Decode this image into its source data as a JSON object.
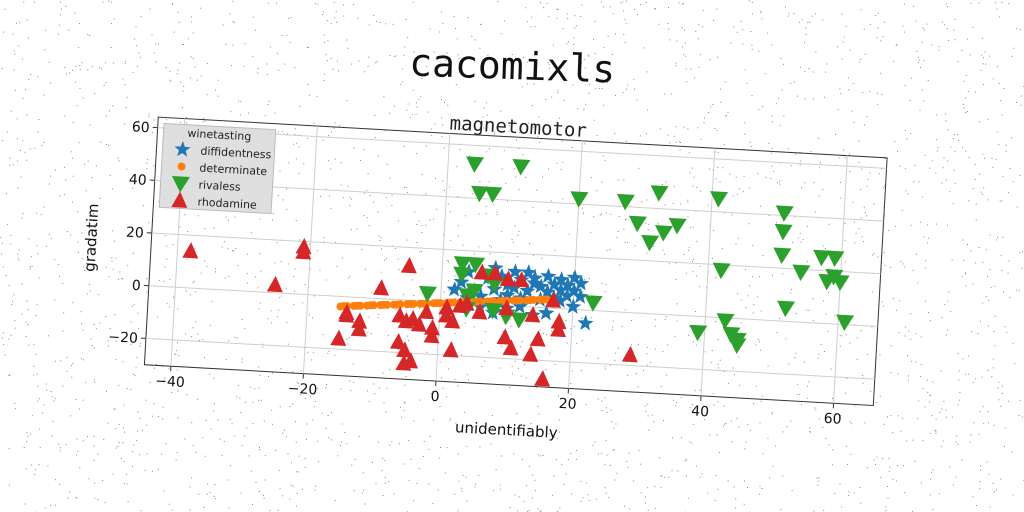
{
  "suptitle": "cacomixls",
  "colors": {
    "diffidentness": "#1f77b4",
    "determinate": "#ff7f0e",
    "rivaless": "#2ca02c",
    "rhodamine": "#d62728"
  },
  "chart_data": {
    "type": "scatter",
    "title": "magnetomotor",
    "xlabel": "unidentifiably",
    "ylabel": "gradatim",
    "xlim": [
      -44,
      66
    ],
    "ylim": [
      -30,
      64
    ],
    "xticks": [
      -40,
      -20,
      0,
      20,
      40,
      60
    ],
    "yticks": [
      -20,
      0,
      20,
      40,
      60
    ],
    "grid": true,
    "legend": {
      "title": "winetasting",
      "position": "top-left"
    },
    "series": [
      {
        "name": "diffidentness",
        "marker": "star",
        "points": [
          [
            3,
            8
          ],
          [
            4,
            12
          ],
          [
            5,
            5
          ],
          [
            6,
            3
          ],
          [
            7,
            10
          ],
          [
            8,
            6
          ],
          [
            8,
            14
          ],
          [
            9,
            2
          ],
          [
            9,
            11
          ],
          [
            10,
            8
          ],
          [
            10,
            4
          ],
          [
            11,
            13
          ],
          [
            11,
            7
          ],
          [
            12,
            10
          ],
          [
            12,
            3
          ],
          [
            13,
            13
          ],
          [
            13,
            6
          ],
          [
            14,
            9
          ],
          [
            14,
            11
          ],
          [
            15,
            3
          ],
          [
            15,
            8
          ],
          [
            16,
            12
          ],
          [
            16,
            6
          ],
          [
            17,
            9
          ],
          [
            17,
            4
          ],
          [
            18,
            7
          ],
          [
            18,
            11
          ],
          [
            19,
            5
          ],
          [
            19,
            9
          ],
          [
            20,
            12
          ],
          [
            20,
            7
          ],
          [
            21,
            10
          ],
          [
            21,
            5
          ],
          [
            22,
            -5
          ],
          [
            16,
            -2
          ],
          [
            14,
            -3
          ],
          [
            12,
            0
          ],
          [
            6,
            -1
          ],
          [
            4,
            2
          ],
          [
            2,
            5
          ],
          [
            18,
            3
          ],
          [
            8,
            -3
          ],
          [
            10,
            -1
          ],
          [
            20,
            1
          ]
        ]
      },
      {
        "name": "determinate",
        "marker": "circle",
        "points": [
          [
            -15,
            -3.8
          ],
          [
            -14,
            -3.5
          ],
          [
            -13,
            -3.3
          ],
          [
            -12,
            -3.1
          ],
          [
            -11,
            -2.9
          ],
          [
            -10,
            -2.6
          ],
          [
            -9,
            -2.4
          ],
          [
            -8,
            -2.2
          ],
          [
            -7,
            -2
          ],
          [
            -6,
            -1.7
          ],
          [
            -5,
            -1.5
          ],
          [
            -4,
            -1.3
          ],
          [
            -3,
            -1.1
          ],
          [
            -2,
            -0.8
          ],
          [
            -1,
            -0.6
          ],
          [
            0,
            -0.4
          ],
          [
            1,
            -0.2
          ],
          [
            2,
            0.1
          ],
          [
            3,
            0.3
          ],
          [
            4,
            0.5
          ],
          [
            5,
            0.7
          ],
          [
            6,
            1
          ],
          [
            7,
            1.2
          ],
          [
            8,
            1.4
          ],
          [
            9,
            1.6
          ],
          [
            10,
            1.9
          ],
          [
            11,
            2.1
          ],
          [
            12,
            2.3
          ],
          [
            13,
            2.5
          ],
          [
            14,
            2.8
          ],
          [
            15,
            3
          ],
          [
            16,
            3.2
          ],
          [
            -14.5,
            -3.6
          ],
          [
            -12.5,
            -3.2
          ],
          [
            -10.5,
            -2.7
          ],
          [
            -8.5,
            -2.3
          ],
          [
            -6.5,
            -1.9
          ],
          [
            -4.5,
            -1.4
          ],
          [
            -2.5,
            -1
          ],
          [
            -0.5,
            -0.5
          ],
          [
            1.5,
            0
          ],
          [
            3.5,
            0.4
          ],
          [
            5.5,
            0.9
          ],
          [
            7.5,
            1.3
          ],
          [
            9.5,
            1.7
          ],
          [
            11.5,
            2.2
          ],
          [
            13.5,
            2.6
          ],
          [
            15.5,
            3.1
          ]
        ]
      },
      {
        "name": "rivaless",
        "marker": "triangle_down",
        "points": [
          [
            4,
            53
          ],
          [
            11,
            53
          ],
          [
            5,
            42
          ],
          [
            7,
            42
          ],
          [
            20,
            42
          ],
          [
            27,
            42
          ],
          [
            32,
            46
          ],
          [
            41,
            45
          ],
          [
            51,
            41
          ],
          [
            29,
            34
          ],
          [
            35,
            34
          ],
          [
            33,
            31
          ],
          [
            31,
            27
          ],
          [
            51,
            34
          ],
          [
            51,
            25
          ],
          [
            57,
            25
          ],
          [
            59,
            25
          ],
          [
            54,
            19
          ],
          [
            42,
            18
          ],
          [
            59,
            18
          ],
          [
            60,
            16
          ],
          [
            58,
            16
          ],
          [
            52,
            5
          ],
          [
            61,
            1
          ],
          [
            39,
            -6
          ],
          [
            43,
            -1
          ],
          [
            44,
            -6
          ],
          [
            45,
            -8
          ],
          [
            45,
            -10
          ],
          [
            3,
            15
          ],
          [
            5,
            15
          ],
          [
            3,
            11
          ],
          [
            7,
            11
          ],
          [
            5,
            5
          ],
          [
            4,
            3
          ],
          [
            8,
            8
          ],
          [
            -2,
            3
          ],
          [
            23,
            3
          ],
          [
            12,
            -5
          ],
          [
            4,
            -2
          ],
          [
            8,
            -2
          ],
          [
            10,
            -4
          ]
        ]
      },
      {
        "name": "rhodamine",
        "marker": "triangle",
        "points": [
          [
            -38,
            14
          ],
          [
            -21,
            18
          ],
          [
            -21,
            16
          ],
          [
            -25,
            3
          ],
          [
            -9,
            4
          ],
          [
            -5,
            13
          ],
          [
            -14,
            -6
          ],
          [
            -14,
            -7
          ],
          [
            -15,
            -16
          ],
          [
            -12,
            -12
          ],
          [
            -12,
            -9
          ],
          [
            -6,
            -6
          ],
          [
            -5,
            -8
          ],
          [
            -4,
            -7
          ],
          [
            -3,
            -9
          ],
          [
            -1,
            -10
          ],
          [
            -6,
            -16
          ],
          [
            -5,
            -19
          ],
          [
            -5,
            -24
          ],
          [
            -4,
            -23
          ],
          [
            -1,
            -13
          ],
          [
            2,
            -7
          ],
          [
            1,
            -5
          ],
          [
            2,
            -18
          ],
          [
            6,
            12
          ],
          [
            8,
            12
          ],
          [
            10,
            10
          ],
          [
            12,
            10
          ],
          [
            14,
            -3
          ],
          [
            10,
            -12
          ],
          [
            11,
            -16
          ],
          [
            14,
            -18
          ],
          [
            15,
            -12
          ],
          [
            18,
            -8
          ],
          [
            18,
            -5
          ],
          [
            29,
            -16
          ],
          [
            17,
            3
          ],
          [
            1,
            -2
          ],
          [
            -2,
            -4
          ],
          [
            3,
            -1
          ],
          [
            6,
            -3
          ],
          [
            10,
            -1
          ],
          [
            4,
            0
          ],
          [
            16,
            -27
          ]
        ]
      }
    ]
  }
}
